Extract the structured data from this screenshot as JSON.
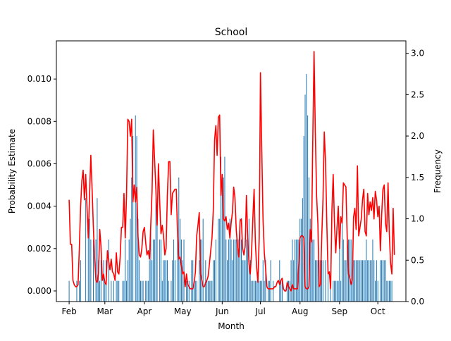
{
  "chart_data": {
    "type": "bar+line",
    "title": "School",
    "xlabel": "Month",
    "ylabel": "Probability Estimate",
    "ylabel_right": "Frequency",
    "xlim_day": [
      -10,
      264
    ],
    "ylim": [
      -0.0005,
      0.0118
    ],
    "ylim_right": [
      0.0,
      3.15
    ],
    "x_ticks": [
      {
        "label": "Feb",
        "day": 0
      },
      {
        "label": "Mar",
        "day": 28
      },
      {
        "label": "Apr",
        "day": 59
      },
      {
        "label": "May",
        "day": 89
      },
      {
        "label": "Jun",
        "day": 120
      },
      {
        "label": "Jul",
        "day": 150
      },
      {
        "label": "Aug",
        "day": 181
      },
      {
        "label": "Sep",
        "day": 212
      },
      {
        "label": "Oct",
        "day": 242
      }
    ],
    "y_ticks": [
      "0.000",
      "0.002",
      "0.004",
      "0.006",
      "0.008",
      "0.010"
    ],
    "y_right_ticks": [
      "0.0",
      "0.5",
      "1.0",
      "1.5",
      "2.0",
      "2.5",
      "3.0"
    ],
    "colors": {
      "bars": "#1f77b4",
      "line": "#ff0000"
    },
    "bar_series": {
      "name": "Frequency",
      "day": [
        0,
        6,
        8,
        9,
        13,
        15,
        16,
        17,
        19,
        21,
        22,
        23,
        24,
        25,
        27,
        28,
        29,
        31,
        33,
        35,
        37,
        38,
        39,
        42,
        43,
        44,
        45,
        46,
        47,
        48,
        49,
        50,
        52,
        53,
        54,
        55,
        56,
        57,
        58,
        60,
        61,
        62,
        63,
        64,
        65,
        66,
        67,
        68,
        69,
        71,
        72,
        73,
        74,
        75,
        76,
        77,
        78,
        80,
        81,
        82,
        83,
        85,
        86,
        87,
        88,
        89,
        90,
        92,
        93,
        94,
        96,
        97,
        98,
        99,
        100,
        102,
        103,
        104,
        105,
        107,
        108,
        109,
        110,
        111,
        112,
        113,
        114,
        115,
        117,
        118,
        119,
        120,
        121,
        122,
        123,
        124,
        125,
        126,
        127,
        128,
        129,
        130,
        131,
        132,
        133,
        134,
        135,
        136,
        137,
        138,
        139,
        140,
        141,
        142,
        143,
        144,
        145,
        146,
        147,
        148,
        149,
        150,
        151,
        152,
        153,
        154,
        156,
        157,
        158,
        160,
        165,
        166,
        167,
        171,
        172,
        173,
        174,
        175,
        176,
        177,
        178,
        179,
        180,
        181,
        182,
        183,
        184,
        185,
        186,
        187,
        188,
        189,
        190,
        191,
        192,
        193,
        194,
        195,
        196,
        197,
        198,
        199,
        201,
        203,
        205,
        207,
        208,
        209,
        210,
        211,
        212,
        213,
        214,
        215,
        216,
        217,
        218,
        219,
        220,
        221,
        222,
        223,
        224,
        225,
        226,
        227,
        228,
        229,
        230,
        231,
        232,
        233,
        234,
        235,
        236,
        237,
        238,
        239,
        240,
        241,
        242,
        244,
        245,
        246,
        247,
        248,
        249,
        250,
        251,
        252,
        253,
        254,
        255,
        256
      ],
      "values": [
        0.25,
        0.25,
        0.25,
        0.5,
        1.25,
        1.0,
        1.0,
        0.75,
        0.75,
        0.75,
        1.25,
        0.5,
        0.25,
        0.5,
        0.5,
        0.25,
        0.5,
        0.75,
        0.25,
        0.25,
        0.25,
        0.25,
        0.25,
        0.25,
        0.25,
        0.75,
        0.25,
        0.5,
        0.75,
        1.0,
        1.5,
        2.0,
        2.25,
        2.0,
        1.0,
        0.5,
        0.25,
        0.25,
        0.25,
        0.25,
        0.25,
        0.25,
        0.5,
        1.0,
        0.5,
        0.75,
        0.75,
        1.25,
        1.0,
        0.75,
        0.75,
        0.25,
        0.5,
        0.5,
        0.5,
        0.5,
        0.25,
        0.25,
        0.5,
        0.75,
        0.5,
        0.75,
        1.5,
        1.0,
        0.75,
        0.5,
        0.75,
        0.25,
        0.25,
        0.25,
        0.5,
        0.5,
        0.25,
        0.25,
        0.25,
        0.5,
        0.75,
        0.75,
        1.0,
        0.5,
        0.25,
        0.25,
        0.25,
        0.25,
        0.25,
        0.5,
        0.5,
        0.75,
        1.0,
        1.0,
        1.75,
        1.5,
        1.5,
        1.75,
        0.75,
        0.5,
        0.75,
        1.0,
        0.75,
        0.5,
        0.75,
        0.75,
        0.75,
        0.75,
        0.75,
        1.0,
        0.75,
        0.5,
        0.5,
        0.5,
        0.75,
        0.75,
        1.0,
        0.5,
        0.25,
        0.25,
        0.25,
        0.25,
        0.25,
        0.25,
        0.25,
        0.25,
        0.25,
        0.5,
        0.25,
        0.5,
        0.25,
        0.25,
        0.5,
        0.25,
        0.5,
        0.25,
        0.25,
        0.25,
        0.25,
        0.25,
        0.5,
        0.75,
        0.5,
        0.75,
        0.75,
        0.75,
        0.75,
        1.0,
        1.0,
        1.25,
        2.0,
        2.5,
        2.75,
        2.25,
        1.5,
        1.0,
        0.75,
        0.75,
        0.75,
        0.5,
        0.5,
        0.5,
        0.5,
        0.5,
        0.5,
        0.5,
        0.5,
        0.5,
        0.25,
        0.25,
        0.25,
        0.25,
        0.25,
        0.25,
        0.75,
        0.25,
        1.0,
        0.75,
        0.5,
        0.5,
        0.75,
        0.75,
        0.75,
        0.75,
        0.25,
        0.5,
        0.5,
        0.5,
        0.5,
        0.5,
        0.5,
        0.5,
        0.5,
        0.5,
        0.5,
        0.75,
        0.5,
        0.5,
        0.5,
        0.5,
        0.75,
        0.5,
        0.25,
        0.5,
        0.25,
        0.5,
        0.5,
        0.5,
        0.5,
        0.5,
        0.25,
        0.25,
        0.25,
        0.25,
        0.25
      ]
    },
    "line_series": {
      "name": "Probability Estimate",
      "day": [
        0,
        1,
        2,
        3,
        4,
        5,
        6,
        7,
        8,
        9,
        10,
        11,
        12,
        13,
        14,
        15,
        16,
        17,
        18,
        19,
        20,
        21,
        22,
        23,
        24,
        25,
        26,
        27,
        28,
        29,
        30,
        31,
        32,
        33,
        34,
        35,
        36,
        37,
        38,
        39,
        40,
        41,
        42,
        43,
        44,
        45,
        46,
        47,
        48,
        49,
        50,
        51,
        52,
        53,
        54,
        55,
        56,
        57,
        58,
        59,
        60,
        61,
        62,
        63,
        64,
        65,
        66,
        67,
        68,
        69,
        70,
        71,
        72,
        73,
        74,
        75,
        76,
        77,
        78,
        79,
        80,
        81,
        82,
        83,
        84,
        85,
        86,
        87,
        88,
        89,
        90,
        91,
        92,
        93,
        94,
        95,
        96,
        97,
        98,
        99,
        100,
        101,
        102,
        103,
        104,
        105,
        106,
        107,
        108,
        109,
        110,
        111,
        112,
        113,
        114,
        115,
        116,
        117,
        118,
        119,
        120,
        121,
        122,
        123,
        124,
        125,
        126,
        127,
        128,
        129,
        130,
        131,
        132,
        133,
        134,
        135,
        136,
        137,
        138,
        139,
        140,
        141,
        142,
        143,
        144,
        145,
        146,
        147,
        148,
        149,
        150,
        151,
        152,
        153,
        154,
        155,
        156,
        157,
        158,
        159,
        160,
        161,
        162,
        163,
        164,
        165,
        166,
        167,
        168,
        169,
        170,
        171,
        172,
        173,
        174,
        175,
        176,
        177,
        178,
        179,
        180,
        181,
        182,
        183,
        184,
        185,
        186,
        187,
        188,
        189,
        190,
        191,
        192,
        193,
        194,
        195,
        196,
        197,
        198,
        199,
        200,
        201,
        202,
        203,
        204,
        205,
        206,
        207,
        208,
        209,
        210,
        211,
        212,
        213,
        214,
        215,
        216,
        217,
        218,
        219,
        220,
        221,
        222,
        223,
        224,
        225,
        226,
        227,
        228,
        229,
        230,
        231,
        232,
        233,
        234,
        235,
        236,
        237,
        238,
        239,
        240,
        241,
        242,
        243,
        244,
        245,
        246,
        247,
        248,
        249,
        250,
        251,
        252,
        253,
        254,
        255,
        256
      ],
      "values": [
        0.0043,
        0.0022,
        0.0022,
        0.0005,
        0.0003,
        0.0002,
        0.0002,
        0.0003,
        0.002,
        0.004,
        0.0052,
        0.0057,
        0.0043,
        0.0055,
        0.004,
        0.0025,
        0.0045,
        0.0064,
        0.0048,
        0.003,
        0.0015,
        0.0005,
        0.0004,
        0.0008,
        0.0029,
        0.0021,
        0.0005,
        0.0008,
        0.0004,
        0.0003,
        0.0019,
        0.0014,
        0.001,
        0.0015,
        0.0009,
        0.0008,
        0.0005,
        0.0018,
        0.0009,
        0.0008,
        0.0016,
        0.003,
        0.003,
        0.0046,
        0.0025,
        0.0045,
        0.0081,
        0.008,
        0.0073,
        0.0081,
        0.0042,
        0.005,
        0.0042,
        0.0049,
        0.0026,
        0.0017,
        0.0016,
        0.002,
        0.0028,
        0.003,
        0.0023,
        0.0017,
        0.0019,
        0.0015,
        0.0031,
        0.0047,
        0.0076,
        0.0062,
        0.0048,
        0.0031,
        0.006,
        0.0042,
        0.0027,
        0.0031,
        0.0026,
        0.0017,
        0.002,
        0.0045,
        0.0061,
        0.0061,
        0.0036,
        0.0046,
        0.0047,
        0.0048,
        0.0048,
        0.0027,
        0.0015,
        0.0016,
        0.0012,
        0.0008,
        0.0009,
        0.0002,
        0.0008,
        0.0003,
        0.0002,
        0.0001,
        0.0001,
        0.0001,
        0.0004,
        0.0009,
        0.0026,
        0.0031,
        0.0037,
        0.0008,
        0.0005,
        0.0002,
        0.0002,
        0.0004,
        0.0005,
        0.0007,
        0.0013,
        0.0019,
        0.0025,
        0.0038,
        0.0071,
        0.0078,
        0.0064,
        0.0082,
        0.0083,
        0.0045,
        0.0055,
        0.0034,
        0.0033,
        0.0035,
        0.0029,
        0.0032,
        0.0025,
        0.0032,
        0.0037,
        0.0049,
        0.0044,
        0.0029,
        0.0021,
        0.0016,
        0.0033,
        0.0034,
        0.002,
        0.0017,
        0.0021,
        0.0045,
        0.0025,
        0.0013,
        0.0008,
        0.0018,
        0.0034,
        0.0048,
        0.0023,
        0.0011,
        0.0004,
        0.0025,
        0.0103,
        0.0067,
        0.0034,
        0.0018,
        0.0011,
        0.0002,
        0.0001,
        0.0001,
        0.0001,
        0.0001,
        0.0001,
        0.0002,
        0.0002,
        0.0004,
        0.0005,
        0.0003,
        0.0005,
        0.0006,
        0.0001,
        0.0,
        0.0,
        0.0004,
        0.0002,
        0.0001,
        0.0,
        0.0003,
        0.0001,
        0.0001,
        0.0001,
        0.0001,
        0.0012,
        0.0025,
        0.0026,
        0.0026,
        0.0025,
        0.0002,
        0.0001,
        0.0001,
        0.0002,
        0.0029,
        0.0023,
        0.0071,
        0.0113,
        0.0075,
        0.0045,
        0.0032,
        0.0002,
        0.0003,
        0.0025,
        0.0043,
        0.0075,
        0.0061,
        0.0032,
        0.0008,
        0.0009,
        0.0001,
        0.0038,
        0.0055,
        0.0032,
        0.0018,
        0.003,
        0.004,
        0.002,
        0.0035,
        0.0032,
        0.0051,
        0.005,
        0.0049,
        0.0025,
        0.0008,
        0.0006,
        0.0003,
        0.0005,
        0.0035,
        0.0039,
        0.0029,
        0.0059,
        0.0026,
        0.003,
        0.0034,
        0.0043,
        0.0048,
        0.0028,
        0.0026,
        0.0046,
        0.0036,
        0.0042,
        0.0038,
        0.0044,
        0.0034,
        0.0047,
        0.0043,
        0.0035,
        0.004,
        0.0019,
        0.0036,
        0.0048,
        0.005,
        0.0032,
        0.0028,
        0.0051,
        0.0027,
        0.0013,
        0.0008,
        0.0039,
        0.0017
      ]
    }
  }
}
